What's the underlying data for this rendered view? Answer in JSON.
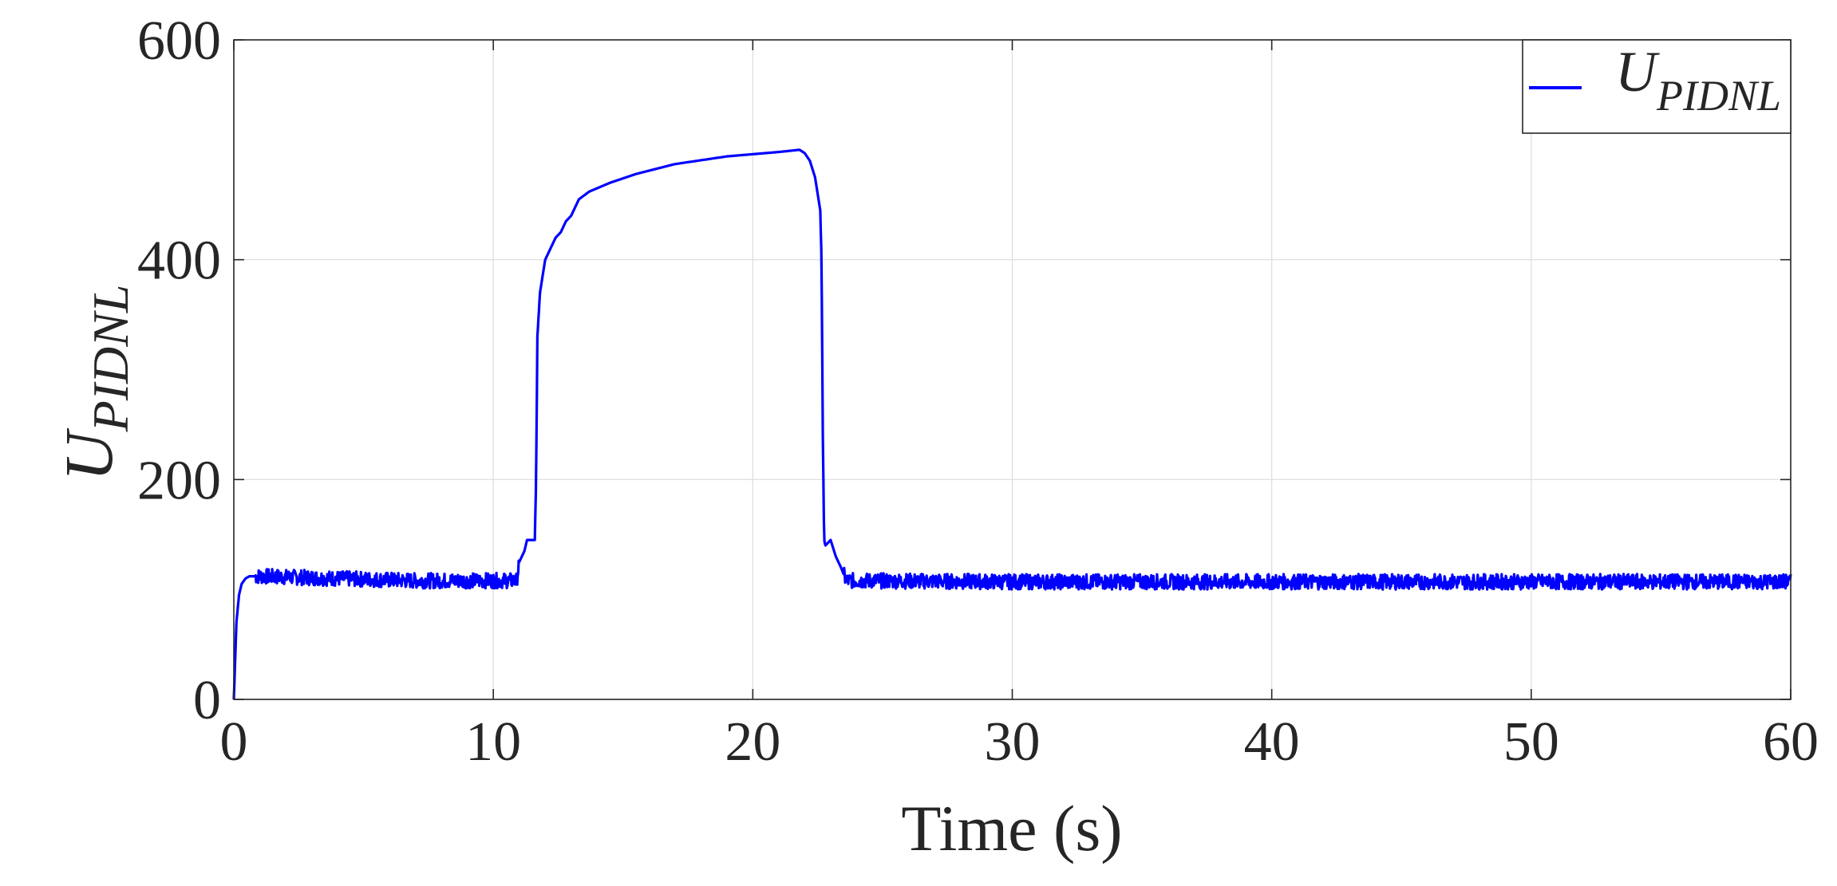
{
  "chart_data": {
    "type": "line",
    "xlabel": "Time (s)",
    "ylabel_main": "U",
    "ylabel_sub": "PIDNL",
    "xlim": [
      0,
      60
    ],
    "ylim": [
      0,
      600
    ],
    "x_ticks": [
      0,
      10,
      20,
      30,
      40,
      50,
      60
    ],
    "y_ticks": [
      0,
      200,
      400,
      600
    ],
    "x_tick_labels": [
      "0",
      "10",
      "20",
      "30",
      "40",
      "50",
      "60"
    ],
    "y_tick_labels": [
      "0",
      "200",
      "400",
      "600"
    ],
    "grid": true,
    "legend_position": "top-right",
    "series": [
      {
        "name_main": "U",
        "name_sub": "PIDNL",
        "color": "#0000ff",
        "noise": 7,
        "x": [
          0,
          0.05,
          0.1,
          0.2,
          0.3,
          0.45,
          0.6,
          1.0,
          4.0,
          7.0,
          10.0,
          10.9,
          11.0,
          11.2,
          11.3,
          11.6,
          11.65,
          11.7,
          11.8,
          11.9,
          12.0,
          12.2,
          12.4,
          12.6,
          12.8,
          13.0,
          13.3,
          13.7,
          14.5,
          15.5,
          17.0,
          19.0,
          21.0,
          21.8,
          22.0,
          22.2,
          22.4,
          22.5,
          22.6,
          22.65,
          22.7,
          22.75,
          22.8,
          23.0,
          23.2,
          23.4,
          23.6,
          24.0,
          30.0,
          40.0,
          50.0,
          60.0
        ],
        "y": [
          0,
          35,
          70,
          95,
          105,
          110,
          112,
          112,
          110,
          108,
          108,
          108,
          125,
          135,
          145,
          145,
          200,
          330,
          370,
          385,
          400,
          410,
          420,
          425,
          435,
          440,
          455,
          462,
          470,
          478,
          487,
          494,
          498,
          500,
          497,
          490,
          475,
          460,
          445,
          400,
          240,
          145,
          140,
          145,
          130,
          120,
          108,
          108,
          107,
          107,
          107,
          107
        ]
      }
    ]
  }
}
